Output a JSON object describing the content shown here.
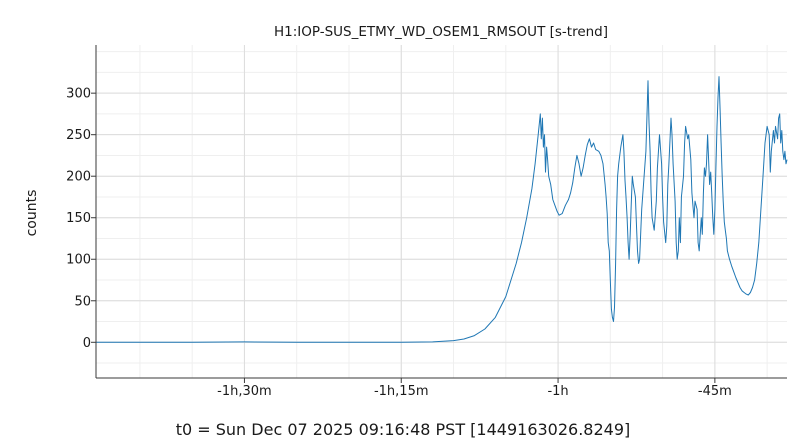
{
  "chart_data": {
    "type": "line",
    "title": "H1:IOP-SUS_ETMY_WD_OSEM1_RMSOUT [s-trend]",
    "ylabel": "counts",
    "xlabel": "",
    "footer": "t0 = Sun Dec 07 2025 09:16:48 PST [1449163026.8249]",
    "x_unit": "minutes relative to t0",
    "xlim": [
      -104.2,
      -38.1
    ],
    "ylim": [
      -43,
      358
    ],
    "x_ticks": [
      {
        "value": -90,
        "label": "-1h,30m"
      },
      {
        "value": -75,
        "label": "-1h,15m"
      },
      {
        "value": -60,
        "label": "-1h"
      },
      {
        "value": -45,
        "label": "-45m"
      }
    ],
    "y_ticks": [
      {
        "value": 0,
        "label": "0"
      },
      {
        "value": 50,
        "label": "50"
      },
      {
        "value": 100,
        "label": "100"
      },
      {
        "value": 150,
        "label": "150"
      },
      {
        "value": 200,
        "label": "200"
      },
      {
        "value": 250,
        "label": "250"
      },
      {
        "value": 300,
        "label": "300"
      }
    ],
    "grid": true,
    "line_color": "#1f77b4",
    "series": [
      {
        "points": [
          [
            -104.2,
            0
          ],
          [
            -100,
            0
          ],
          [
            -95,
            0
          ],
          [
            -90,
            0.5
          ],
          [
            -85,
            0
          ],
          [
            -80,
            0
          ],
          [
            -75,
            0
          ],
          [
            -72,
            0.5
          ],
          [
            -70,
            2
          ],
          [
            -69,
            4
          ],
          [
            -68,
            8
          ],
          [
            -67,
            16
          ],
          [
            -66,
            30
          ],
          [
            -65,
            55
          ],
          [
            -64.5,
            75
          ],
          [
            -64,
            95
          ],
          [
            -63.5,
            120
          ],
          [
            -63,
            150
          ],
          [
            -62.5,
            185
          ],
          [
            -62.2,
            215
          ],
          [
            -61.9,
            250
          ],
          [
            -61.7,
            275
          ],
          [
            -61.6,
            245
          ],
          [
            -61.5,
            270
          ],
          [
            -61.4,
            235
          ],
          [
            -61.3,
            250
          ],
          [
            -61.2,
            205
          ],
          [
            -61.1,
            235
          ],
          [
            -61.0,
            220
          ],
          [
            -60.9,
            200
          ],
          [
            -60.7,
            190
          ],
          [
            -60.5,
            172
          ],
          [
            -60.3,
            165
          ],
          [
            -60.1,
            158
          ],
          [
            -59.9,
            153
          ],
          [
            -59.6,
            155
          ],
          [
            -59.3,
            165
          ],
          [
            -59.0,
            172
          ],
          [
            -58.8,
            180
          ],
          [
            -58.6,
            192
          ],
          [
            -58.4,
            210
          ],
          [
            -58.2,
            225
          ],
          [
            -58.0,
            215
          ],
          [
            -57.8,
            200
          ],
          [
            -57.6,
            210
          ],
          [
            -57.4,
            225
          ],
          [
            -57.2,
            238
          ],
          [
            -57.0,
            245
          ],
          [
            -56.8,
            235
          ],
          [
            -56.6,
            240
          ],
          [
            -56.4,
            232
          ],
          [
            -56.1,
            230
          ],
          [
            -55.9,
            225
          ],
          [
            -55.7,
            215
          ],
          [
            -55.5,
            190
          ],
          [
            -55.4,
            175
          ],
          [
            -55.3,
            155
          ],
          [
            -55.2,
            120
          ],
          [
            -55.1,
            110
          ],
          [
            -55.0,
            75
          ],
          [
            -54.9,
            40
          ],
          [
            -54.8,
            30
          ],
          [
            -54.7,
            25
          ],
          [
            -54.6,
            42
          ],
          [
            -54.5,
            95
          ],
          [
            -54.4,
            160
          ],
          [
            -54.3,
            200
          ],
          [
            -54.2,
            215
          ],
          [
            -54.0,
            235
          ],
          [
            -53.8,
            250
          ],
          [
            -53.7,
            230
          ],
          [
            -53.6,
            195
          ],
          [
            -53.5,
            175
          ],
          [
            -53.4,
            150
          ],
          [
            -53.3,
            120
          ],
          [
            -53.2,
            100
          ],
          [
            -53.1,
            130
          ],
          [
            -53.0,
            165
          ],
          [
            -52.9,
            200
          ],
          [
            -52.8,
            190
          ],
          [
            -52.6,
            175
          ],
          [
            -52.5,
            140
          ],
          [
            -52.4,
            110
          ],
          [
            -52.3,
            95
          ],
          [
            -52.2,
            100
          ],
          [
            -52.0,
            160
          ],
          [
            -51.8,
            195
          ],
          [
            -51.6,
            230
          ],
          [
            -51.5,
            270
          ],
          [
            -51.4,
            315
          ],
          [
            -51.3,
            265
          ],
          [
            -51.2,
            230
          ],
          [
            -51.1,
            180
          ],
          [
            -51.0,
            150
          ],
          [
            -50.8,
            135
          ],
          [
            -50.6,
            170
          ],
          [
            -50.5,
            210
          ],
          [
            -50.3,
            250
          ],
          [
            -50.1,
            215
          ],
          [
            -50.0,
            175
          ],
          [
            -49.9,
            145
          ],
          [
            -49.7,
            120
          ],
          [
            -49.6,
            140
          ],
          [
            -49.5,
            190
          ],
          [
            -49.4,
            215
          ],
          [
            -49.2,
            270
          ],
          [
            -49.1,
            250
          ],
          [
            -49.0,
            215
          ],
          [
            -48.8,
            170
          ],
          [
            -48.7,
            120
          ],
          [
            -48.6,
            100
          ],
          [
            -48.5,
            110
          ],
          [
            -48.4,
            150
          ],
          [
            -48.3,
            120
          ],
          [
            -48.2,
            175
          ],
          [
            -48.0,
            200
          ],
          [
            -47.9,
            240
          ],
          [
            -47.8,
            260
          ],
          [
            -47.6,
            245
          ],
          [
            -47.5,
            250
          ],
          [
            -47.3,
            220
          ],
          [
            -47.2,
            180
          ],
          [
            -47.1,
            165
          ],
          [
            -47.0,
            150
          ],
          [
            -46.9,
            170
          ],
          [
            -46.7,
            160
          ],
          [
            -46.6,
            120
          ],
          [
            -46.5,
            110
          ],
          [
            -46.3,
            150
          ],
          [
            -46.2,
            130
          ],
          [
            -46.1,
            180
          ],
          [
            -46.0,
            210
          ],
          [
            -45.9,
            200
          ],
          [
            -45.8,
            215
          ],
          [
            -45.7,
            250
          ],
          [
            -45.6,
            220
          ],
          [
            -45.5,
            190
          ],
          [
            -45.4,
            205
          ],
          [
            -45.3,
            180
          ],
          [
            -45.2,
            150
          ],
          [
            -45.1,
            130
          ],
          [
            -45.0,
            160
          ],
          [
            -44.9,
            210
          ],
          [
            -44.8,
            260
          ],
          [
            -44.7,
            295
          ],
          [
            -44.6,
            320
          ],
          [
            -44.5,
            280
          ],
          [
            -44.4,
            240
          ],
          [
            -44.3,
            200
          ],
          [
            -44.2,
            170
          ],
          [
            -44.1,
            145
          ],
          [
            -44.0,
            135
          ],
          [
            -43.9,
            125
          ],
          [
            -43.8,
            110
          ],
          [
            -43.6,
            100
          ],
          [
            -43.4,
            92
          ],
          [
            -43.2,
            85
          ],
          [
            -43.0,
            78
          ],
          [
            -42.8,
            72
          ],
          [
            -42.6,
            66
          ],
          [
            -42.4,
            62
          ],
          [
            -42.2,
            60
          ],
          [
            -42.0,
            58
          ],
          [
            -41.8,
            57
          ],
          [
            -41.6,
            60
          ],
          [
            -41.4,
            66
          ],
          [
            -41.2,
            75
          ],
          [
            -41.0,
            95
          ],
          [
            -40.8,
            120
          ],
          [
            -40.6,
            160
          ],
          [
            -40.4,
            200
          ],
          [
            -40.2,
            240
          ],
          [
            -40.0,
            260
          ],
          [
            -39.8,
            250
          ],
          [
            -39.7,
            205
          ],
          [
            -39.6,
            230
          ],
          [
            -39.4,
            255
          ],
          [
            -39.3,
            240
          ],
          [
            -39.2,
            260
          ],
          [
            -39.0,
            245
          ],
          [
            -38.9,
            270
          ],
          [
            -38.8,
            275
          ],
          [
            -38.7,
            240
          ],
          [
            -38.6,
            255
          ],
          [
            -38.5,
            230
          ],
          [
            -38.4,
            220
          ],
          [
            -38.3,
            230
          ],
          [
            -38.2,
            215
          ],
          [
            -38.1,
            220
          ]
        ]
      }
    ]
  }
}
